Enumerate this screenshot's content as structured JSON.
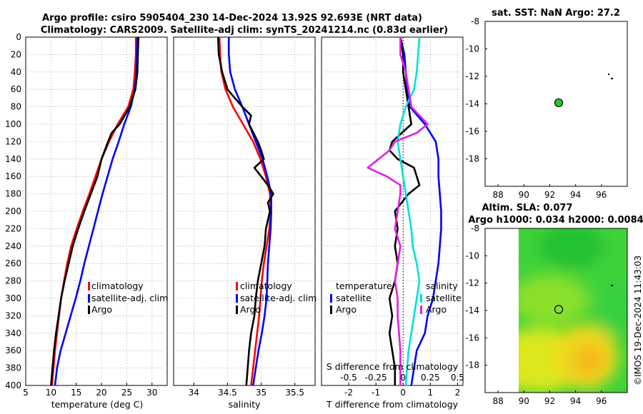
{
  "header": {
    "line1": "Argo profile: csiro 5905404_230 14-Dec-2024 13.92S 92.693E (NRT data)",
    "line2": "Climatology: CARS2009. Satellite-adj clim: synTS_20241214.nc (0.83d earlier)"
  },
  "colors": {
    "climatology": "#ff0000",
    "satellite": "#0000ff",
    "argo": "#000000",
    "sat_sal": "#00e0e0",
    "argo_sal": "#e020e0"
  },
  "chart_data": [
    {
      "id": "temperature",
      "type": "line",
      "xlabel": "temperature (deg C)",
      "xlim": [
        5,
        33
      ],
      "xticks": [
        5,
        10,
        15,
        20,
        25,
        30
      ],
      "ylim": [
        0,
        400
      ],
      "yticks": [
        0,
        20,
        40,
        60,
        80,
        100,
        120,
        140,
        160,
        180,
        200,
        220,
        240,
        260,
        280,
        300,
        320,
        340,
        360,
        380,
        400
      ],
      "legend": [
        "climatology",
        "satellite-adj. clim",
        "Argo"
      ],
      "series": [
        {
          "name": "climatology",
          "color": "#ff0000",
          "depth": [
            0,
            20,
            40,
            60,
            80,
            100,
            120,
            140,
            160,
            180,
            200,
            220,
            240,
            260,
            280,
            300,
            320,
            340,
            360,
            380,
            400
          ],
          "values": [
            26.8,
            26.8,
            26.6,
            26.3,
            25.3,
            23.2,
            21.5,
            20.0,
            18.8,
            17.6,
            16.3,
            15.1,
            14.0,
            13.2,
            12.6,
            12.0,
            11.6,
            11.2,
            10.8,
            10.5,
            10.2
          ]
        },
        {
          "name": "satellite-adj. clim",
          "color": "#0000ff",
          "depth": [
            0,
            20,
            40,
            60,
            80,
            100,
            120,
            140,
            160,
            180,
            200,
            220,
            240,
            260,
            280,
            300,
            320,
            340,
            360,
            380,
            400
          ],
          "values": [
            27.1,
            27.0,
            26.9,
            26.6,
            25.8,
            24.5,
            23.4,
            22.2,
            21.2,
            20.2,
            19.3,
            18.4,
            17.5,
            16.6,
            15.8,
            14.9,
            13.9,
            12.9,
            11.9,
            11.2,
            10.8
          ]
        },
        {
          "name": "Argo",
          "color": "#000000",
          "depth": [
            0,
            20,
            40,
            60,
            80,
            100,
            110,
            120,
            140,
            160,
            180,
            200,
            220,
            240,
            260,
            280,
            300,
            320,
            340,
            360,
            380,
            400
          ],
          "values": [
            27.3,
            27.2,
            27.1,
            26.7,
            25.6,
            23.6,
            22.0,
            21.3,
            20.0,
            19.2,
            17.9,
            16.6,
            15.4,
            14.3,
            13.5,
            12.7,
            12.0,
            11.5,
            11.0,
            10.6,
            10.3,
            10.0
          ]
        }
      ]
    },
    {
      "id": "salinity",
      "type": "line",
      "xlabel": "salinity",
      "xlim": [
        33.7,
        35.8
      ],
      "xticks": [
        34,
        34.5,
        35,
        35.5
      ],
      "xticklabels": [
        "34",
        "34.5",
        "35",
        "35.5"
      ],
      "ylim": [
        0,
        400
      ],
      "legend": [
        "climatology",
        "satellite-adj. clim",
        "Argo"
      ],
      "series": [
        {
          "name": "climatology",
          "color": "#ff0000",
          "depth": [
            0,
            20,
            40,
            60,
            80,
            100,
            120,
            140,
            160,
            180,
            200,
            220,
            240,
            260,
            280,
            300,
            320,
            340,
            360,
            380,
            400
          ],
          "values": [
            34.38,
            34.39,
            34.41,
            34.47,
            34.58,
            34.73,
            34.88,
            34.99,
            35.07,
            35.13,
            35.14,
            35.12,
            35.08,
            35.04,
            35.01,
            34.99,
            34.97,
            34.94,
            34.91,
            34.88,
            34.85
          ]
        },
        {
          "name": "satellite-adj. clim",
          "color": "#0000ff",
          "depth": [
            0,
            20,
            40,
            60,
            80,
            100,
            120,
            140,
            160,
            180,
            200,
            220,
            240,
            260,
            280,
            300,
            320,
            340,
            360,
            380,
            400
          ],
          "values": [
            34.52,
            34.52,
            34.54,
            34.61,
            34.72,
            34.82,
            34.92,
            35.02,
            35.09,
            35.15,
            35.15,
            35.14,
            35.12,
            35.1,
            35.09,
            35.08,
            35.05,
            35.01,
            34.96,
            34.92,
            34.88
          ]
        },
        {
          "name": "Argo",
          "color": "#000000",
          "depth": [
            0,
            20,
            40,
            60,
            80,
            90,
            100,
            120,
            130,
            140,
            150,
            160,
            170,
            180,
            190,
            200,
            220,
            240,
            260,
            280,
            300,
            320,
            340,
            360,
            380,
            400
          ],
          "values": [
            34.36,
            34.37,
            34.42,
            34.5,
            34.72,
            34.85,
            34.82,
            34.95,
            35.0,
            35.04,
            34.9,
            35.0,
            35.1,
            35.18,
            35.1,
            35.13,
            35.07,
            35.05,
            35.0,
            34.95,
            34.92,
            34.9,
            34.85,
            34.82,
            34.8,
            34.78
          ]
        }
      ]
    },
    {
      "id": "differences",
      "type": "line",
      "xlabel": "T difference from climatology",
      "xlim": [
        -3,
        2.2
      ],
      "xticks": [
        -2,
        -1,
        0,
        1,
        2
      ],
      "xticklabels": [
        "-2",
        "-1",
        "0",
        "1",
        "2"
      ],
      "top_label": "S difference from climatology",
      "s_ticklabels": [
        "-0.5",
        "-0.25",
        "0",
        "0.25",
        "0.5"
      ],
      "s_tick_positions": [
        -2,
        -1,
        0,
        1,
        2
      ],
      "ylim": [
        0,
        400
      ],
      "legend_titles": [
        "temperature",
        "salinity"
      ],
      "legend_left": [
        "satellite",
        "Argo"
      ],
      "legend_right": [
        "satellite",
        "Argo"
      ],
      "series": [
        {
          "name": "T satellite",
          "color": "#0000ff",
          "depth": [
            0,
            20,
            40,
            60,
            80,
            100,
            110,
            120,
            140,
            160,
            180,
            200,
            220,
            240,
            260,
            280,
            300,
            320,
            340,
            360,
            380,
            400
          ],
          "values": [
            -0.1,
            0.05,
            0.1,
            0.15,
            0.25,
            0.8,
            1.0,
            1.2,
            1.3,
            1.3,
            1.35,
            1.4,
            1.4,
            1.35,
            1.3,
            1.2,
            1.1,
            0.9,
            0.8,
            0.5,
            0.4,
            0.3
          ]
        },
        {
          "name": "T Argo",
          "color": "#000000",
          "depth": [
            0,
            20,
            40,
            60,
            80,
            100,
            120,
            130,
            140,
            150,
            160,
            170,
            180,
            200,
            220,
            240,
            260,
            280,
            300,
            320,
            340,
            360,
            380,
            400
          ],
          "values": [
            -0.1,
            0.0,
            0.0,
            0.1,
            0.2,
            0.3,
            -0.4,
            -0.5,
            -0.2,
            0.4,
            0.5,
            0.6,
            0.2,
            -0.3,
            -0.2,
            -0.3,
            -0.2,
            -0.3,
            -0.5,
            -0.4,
            -0.5,
            -0.4,
            -0.3,
            -0.3
          ]
        },
        {
          "name": "S satellite",
          "color": "#00e0e0",
          "depth": [
            0,
            20,
            40,
            60,
            80,
            100,
            120,
            140,
            160,
            180,
            200,
            220,
            240,
            260,
            280,
            300,
            320,
            340,
            360,
            380,
            400
          ],
          "values": [
            0.6,
            0.55,
            0.5,
            0.4,
            0.1,
            -0.1,
            -0.2,
            -0.1,
            0.0,
            0.1,
            0.2,
            0.3,
            0.35,
            0.5,
            0.6,
            0.5,
            0.4,
            0.3,
            0.2,
            0.15,
            0.1
          ]
        },
        {
          "name": "S Argo",
          "color": "#e020e0",
          "depth": [
            0,
            20,
            40,
            60,
            80,
            90,
            100,
            110,
            120,
            130,
            140,
            150,
            160,
            170,
            180,
            200,
            220,
            240,
            260,
            280,
            300,
            320,
            340,
            360,
            380,
            400
          ],
          "values": [
            -0.1,
            -0.1,
            0.1,
            0.2,
            0.3,
            0.6,
            0.9,
            0.5,
            -0.3,
            -0.5,
            -0.9,
            -1.3,
            -0.6,
            -0.1,
            -0.1,
            -0.2,
            -0.3,
            -0.1,
            -0.2,
            -0.3,
            -0.2,
            -0.2,
            -0.15,
            -0.1,
            -0.1,
            -0.1
          ]
        }
      ]
    },
    {
      "id": "map_sst",
      "type": "scatter",
      "title": "sat. SST: NaN Argo: 27.2",
      "xlim": [
        87,
        98
      ],
      "ylim": [
        -20,
        -8
      ],
      "xticks": [
        88,
        90,
        92,
        94,
        96
      ],
      "yticks": [
        -8,
        -10,
        -12,
        -14,
        -16,
        -18
      ],
      "xticklabels": [
        "88",
        "90",
        "92",
        "94",
        "96"
      ],
      "yticklabels": [
        "-8",
        "-10",
        "-12",
        "-14",
        "-16",
        "-18"
      ],
      "points": [
        {
          "lon": 92.693,
          "lat": -13.92
        }
      ]
    },
    {
      "id": "map_sla",
      "type": "heatmap",
      "title1": "Altim. SLA: 0.077",
      "title2": "Argo h1000: 0.034 h2000: 0.0084",
      "xlim": [
        87,
        98
      ],
      "ylim": [
        -20,
        -8
      ],
      "xticks": [
        88,
        90,
        92,
        94,
        96
      ],
      "yticks": [
        -8,
        -10,
        -12,
        -14,
        -16,
        -18
      ],
      "xticklabels": [
        "88",
        "90",
        "92",
        "94",
        "96"
      ],
      "yticklabels": [
        "-8",
        "-10",
        "-12",
        "-14",
        "-16",
        "-18"
      ],
      "data_lon_start": 90,
      "points": [
        {
          "lon": 92.693,
          "lat": -13.92
        }
      ]
    }
  ],
  "stamp": "©IMOS 19-Dec-2024 11:43:03"
}
